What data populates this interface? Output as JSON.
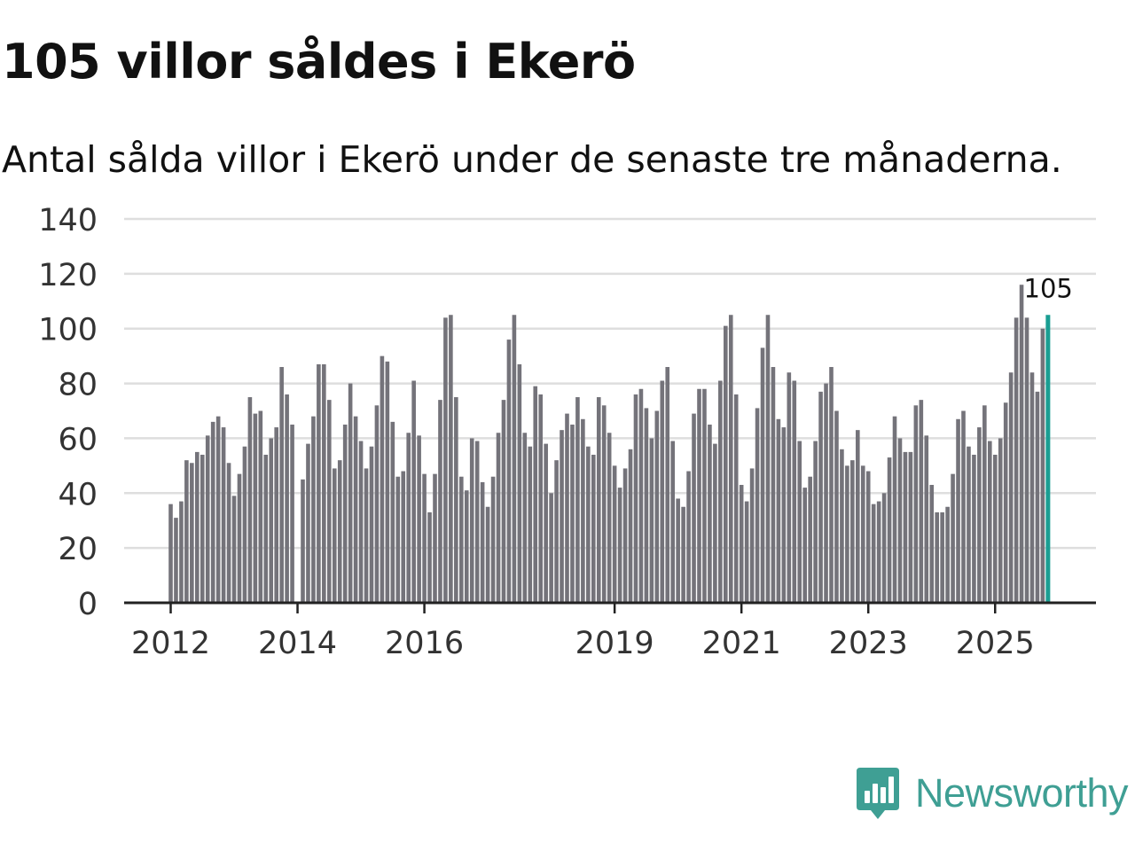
{
  "title": "105 villor såldes i Ekerö",
  "subtitle": "Antal sålda villor i Ekerö under de senaste tre månaderna.",
  "brand": {
    "name": "Newsworthy",
    "color": "#3f9f94",
    "icon": "newsworthy-logo-icon"
  },
  "colors": {
    "bar": "#74737a",
    "highlight": "#1a9e93",
    "grid": "#dedede",
    "axis": "#222222"
  },
  "chart_data": {
    "type": "bar",
    "title": "105 villor såldes i Ekerö",
    "xlabel": "",
    "ylabel": "",
    "ylim": [
      0,
      140
    ],
    "yticks": [
      0,
      20,
      40,
      60,
      80,
      100,
      120,
      140
    ],
    "start": "2012-01",
    "xtick_labels": [
      {
        "label": "2012",
        "index": 0
      },
      {
        "label": "2014",
        "index": 24
      },
      {
        "label": "2016",
        "index": 48
      },
      {
        "label": "2019",
        "index": 84
      },
      {
        "label": "2021",
        "index": 108
      },
      {
        "label": "2023",
        "index": 132
      },
      {
        "label": "2025",
        "index": 156
      }
    ],
    "values": [
      36,
      31,
      37,
      52,
      51,
      55,
      54,
      61,
      66,
      68,
      64,
      51,
      39,
      47,
      57,
      75,
      69,
      70,
      54,
      60,
      64,
      86,
      76,
      65,
      null,
      45,
      58,
      68,
      87,
      87,
      74,
      49,
      52,
      65,
      80,
      68,
      59,
      49,
      57,
      72,
      90,
      88,
      66,
      46,
      48,
      62,
      81,
      61,
      47,
      33,
      47,
      74,
      104,
      105,
      75,
      46,
      41,
      60,
      59,
      44,
      35,
      46,
      62,
      74,
      96,
      105,
      87,
      62,
      57,
      79,
      76,
      58,
      40,
      52,
      63,
      69,
      65,
      75,
      67,
      57,
      54,
      75,
      72,
      62,
      50,
      42,
      49,
      56,
      76,
      78,
      71,
      60,
      70,
      81,
      86,
      59,
      38,
      35,
      48,
      69,
      78,
      78,
      65,
      58,
      81,
      101,
      105,
      76,
      43,
      37,
      49,
      71,
      93,
      105,
      86,
      67,
      64,
      84,
      81,
      59,
      42,
      46,
      59,
      77,
      80,
      86,
      70,
      56,
      50,
      52,
      63,
      50,
      48,
      36,
      37,
      40,
      53,
      68,
      60,
      55,
      55,
      72,
      74,
      61,
      43,
      33,
      33,
      35,
      47,
      67,
      70,
      57,
      54,
      64,
      72,
      59,
      54,
      60,
      73,
      84,
      104,
      116,
      104,
      84,
      77,
      100,
      105
    ],
    "highlight": {
      "label": "105",
      "value": 105
    }
  }
}
